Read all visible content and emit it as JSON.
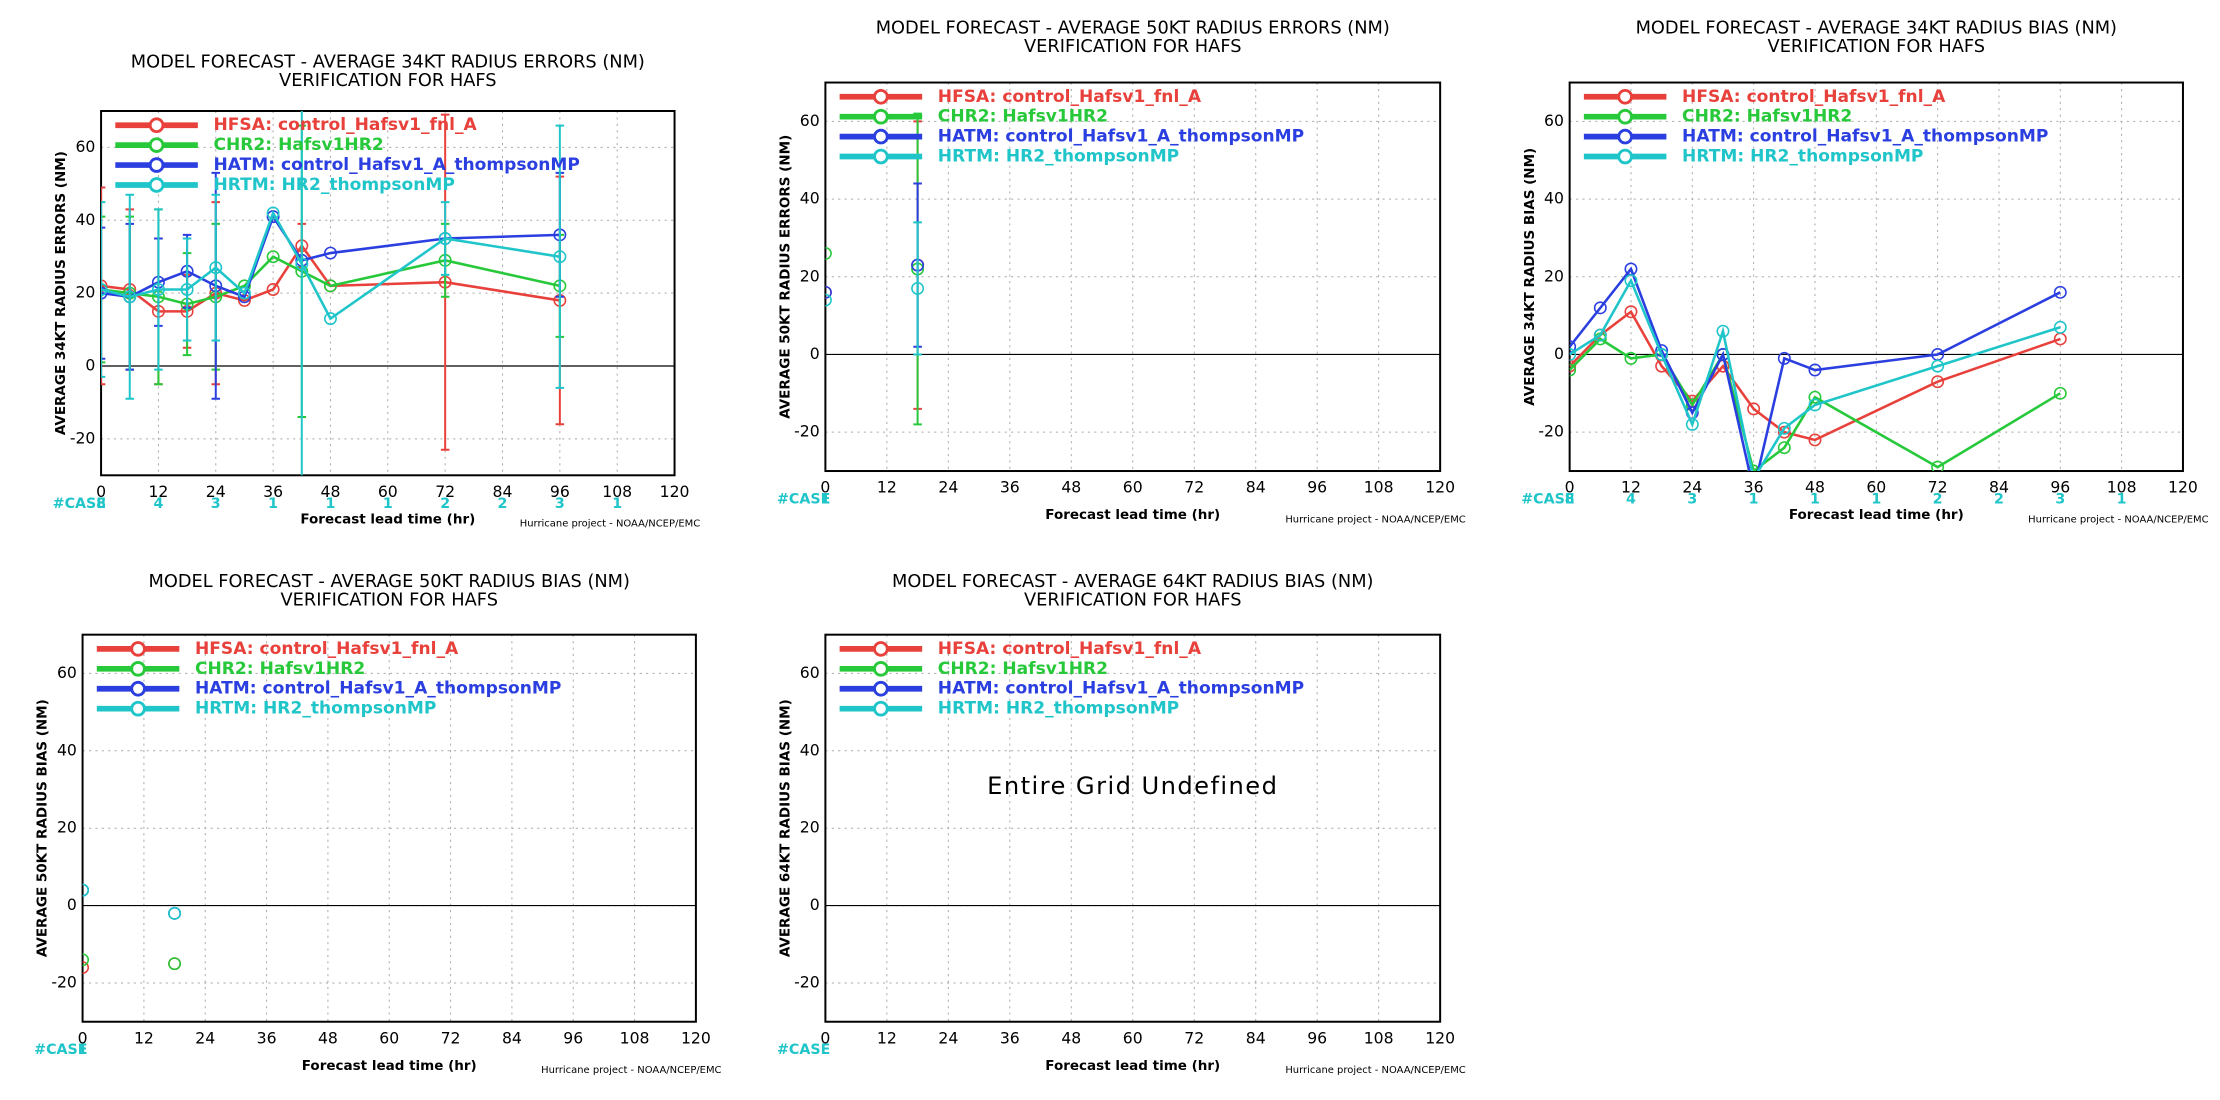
{
  "chart_data": [
    {
      "type": "line",
      "title": "MODEL FORECAST - AVERAGE 34KT RADIUS ERRORS (NM)",
      "subtitle": "VERIFICATION FOR HAFS",
      "ylabel": "AVERAGE 34KT RADIUS ERRORS (NM)",
      "xlabel": "Forecast lead time (hr)",
      "footer": "Hurricane project - NOAA/NCEP/EMC",
      "case_label": "#CASE",
      "cases": {
        "x": [
          0,
          12,
          24,
          36,
          48,
          60,
          72,
          84,
          96,
          108
        ],
        "values": [
          8,
          4,
          3,
          1,
          1,
          1,
          2,
          2,
          3,
          1
        ]
      },
      "x": [
        0,
        6,
        12,
        18,
        24,
        30,
        36,
        42,
        48,
        72,
        96
      ],
      "series": [
        {
          "name": "HFSA:  control_Hafsv1_fnl_A",
          "color": "#e8413c",
          "values": [
            22,
            21,
            15,
            15,
            20,
            18,
            21,
            33,
            22,
            23,
            18
          ],
          "errors": [
            27,
            22,
            20,
            10,
            25,
            null,
            null,
            6,
            null,
            46,
            34
          ]
        },
        {
          "name": "CHR2:  Hafsv1HR2",
          "color": "#27c93a",
          "values": [
            21,
            20,
            19,
            17,
            19,
            22,
            30,
            26,
            22,
            29,
            22
          ],
          "errors": [
            20,
            21,
            24,
            14,
            20,
            null,
            null,
            40,
            null,
            10,
            14
          ]
        },
        {
          "name": "HATM:  control_Hafsv1_A_thompsonMP",
          "color": "#2b3fe0",
          "values": [
            20,
            19,
            23,
            26,
            22,
            19,
            41,
            29,
            31,
            35,
            36
          ],
          "errors": [
            18,
            20,
            12,
            10,
            31,
            null,
            null,
            null,
            null,
            null,
            17
          ]
        },
        {
          "name": "HRTM:  HR2_thompsonMP",
          "color": "#1fc5c9",
          "values": [
            21,
            19,
            21,
            21,
            27,
            20,
            42,
            28,
            13,
            35,
            30
          ],
          "errors": [
            24,
            28,
            22,
            14,
            20,
            null,
            null,
            72,
            null,
            10,
            36
          ]
        }
      ],
      "xlim": [
        0,
        120
      ],
      "xticks": [
        0,
        12,
        24,
        36,
        48,
        60,
        72,
        84,
        96,
        108,
        120
      ],
      "ylim": [
        -30,
        70
      ],
      "yticks": [
        -20,
        0,
        20,
        40,
        60
      ],
      "grid": true
    },
    {
      "type": "line",
      "title": "MODEL FORECAST - AVERAGE 50KT RADIUS ERRORS (NM)",
      "subtitle": "VERIFICATION FOR HAFS",
      "ylabel": "AVERAGE 50KT RADIUS ERRORS (NM)",
      "xlabel": "Forecast lead time (hr)",
      "footer": "Hurricane project - NOAA/NCEP/EMC",
      "case_label": "#CASE",
      "cases": {
        "x": [
          0
        ],
        "values": [
          1
        ]
      },
      "x": [
        0,
        6,
        12,
        18
      ],
      "series": [
        {
          "name": "HFSA:  control_Hafsv1_fnl_A",
          "color": "#e8413c",
          "values": [
            16,
            null,
            null,
            23
          ],
          "errors": [
            null,
            null,
            null,
            37
          ]
        },
        {
          "name": "CHR2:  Hafsv1HR2",
          "color": "#27c93a",
          "values": [
            26,
            null,
            null,
            22
          ],
          "errors": [
            null,
            null,
            null,
            40
          ]
        },
        {
          "name": "HATM:  control_Hafsv1_A_thompsonMP",
          "color": "#2b3fe0",
          "values": [
            16,
            null,
            null,
            23
          ],
          "errors": [
            null,
            null,
            null,
            21
          ]
        },
        {
          "name": "HRTM:  HR2_thompsonMP",
          "color": "#1fc5c9",
          "values": [
            14,
            null,
            null,
            17
          ],
          "errors": [
            null,
            null,
            null,
            17
          ]
        }
      ],
      "xlim": [
        0,
        120
      ],
      "xticks": [
        0,
        12,
        24,
        36,
        48,
        60,
        72,
        84,
        96,
        108,
        120
      ],
      "ylim": [
        -30,
        70
      ],
      "yticks": [
        -20,
        0,
        20,
        40,
        60
      ],
      "grid": true
    },
    {
      "type": "line",
      "title": "MODEL FORECAST - AVERAGE 34KT RADIUS BIAS (NM)",
      "subtitle": "VERIFICATION FOR HAFS",
      "ylabel": "AVERAGE 34KT RADIUS BIAS (NM)",
      "xlabel": "Forecast lead time (hr)",
      "footer": "Hurricane project - NOAA/NCEP/EMC",
      "case_label": "#CASE",
      "cases": {
        "x": [
          0,
          12,
          24,
          36,
          48,
          60,
          72,
          84,
          96,
          108
        ],
        "values": [
          8,
          4,
          3,
          1,
          1,
          1,
          2,
          2,
          3,
          1
        ]
      },
      "x": [
        0,
        6,
        12,
        18,
        24,
        30,
        36,
        42,
        48,
        72,
        96
      ],
      "series": [
        {
          "name": "HFSA:  control_Hafsv1_fnl_A",
          "color": "#e8413c",
          "values": [
            -3,
            5,
            11,
            -3,
            -12,
            -3,
            -14,
            -20,
            -22,
            -7,
            4
          ]
        },
        {
          "name": "CHR2:  Hafsv1HR2",
          "color": "#27c93a",
          "values": [
            -4,
            4,
            -1,
            0,
            -13,
            0,
            -30,
            -24,
            -11,
            -29,
            -10
          ]
        },
        {
          "name": "HATM:  control_Hafsv1_A_thompsonMP",
          "color": "#2b3fe0",
          "values": [
            2,
            12,
            22,
            1,
            -15,
            0,
            -35,
            -1,
            -4,
            0,
            16
          ]
        },
        {
          "name": "HRTM:  HR2_thompsonMP",
          "color": "#1fc5c9",
          "values": [
            0,
            5,
            19,
            0,
            -18,
            6,
            -32,
            -19,
            -13,
            -3,
            7
          ]
        }
      ],
      "xlim": [
        0,
        120
      ],
      "xticks": [
        0,
        12,
        24,
        36,
        48,
        60,
        72,
        84,
        96,
        108,
        120
      ],
      "ylim": [
        -30,
        70
      ],
      "yticks": [
        -20,
        0,
        20,
        40,
        60
      ],
      "grid": true
    },
    {
      "type": "line",
      "title": "MODEL FORECAST - AVERAGE 50KT RADIUS BIAS (NM)",
      "subtitle": "VERIFICATION FOR HAFS",
      "ylabel": "AVERAGE 50KT RADIUS BIAS (NM)",
      "xlabel": "Forecast lead time (hr)",
      "footer": "Hurricane project - NOAA/NCEP/EMC",
      "case_label": "#CASE",
      "cases": {
        "x": [
          0
        ],
        "values": [
          1
        ]
      },
      "x": [
        0,
        6,
        12,
        18
      ],
      "series": [
        {
          "name": "HFSA:  control_Hafsv1_fnl_A",
          "color": "#e8413c",
          "values": [
            -16,
            null,
            null,
            -15
          ]
        },
        {
          "name": "CHR2:  Hafsv1HR2",
          "color": "#27c93a",
          "values": [
            -14,
            null,
            null,
            -15
          ]
        },
        {
          "name": "HATM:  control_Hafsv1_A_thompsonMP",
          "color": "#2b3fe0",
          "values": [
            4,
            null,
            null,
            -2
          ]
        },
        {
          "name": "HRTM:  HR2_thompsonMP",
          "color": "#1fc5c9",
          "values": [
            4,
            null,
            null,
            -2
          ]
        }
      ],
      "xlim": [
        0,
        120
      ],
      "xticks": [
        0,
        12,
        24,
        36,
        48,
        60,
        72,
        84,
        96,
        108,
        120
      ],
      "ylim": [
        -30,
        70
      ],
      "yticks": [
        -20,
        0,
        20,
        40,
        60
      ],
      "grid": true
    },
    {
      "type": "line",
      "title": "MODEL FORECAST - AVERAGE 64KT RADIUS BIAS (NM)",
      "subtitle": "VERIFICATION FOR HAFS",
      "ylabel": "AVERAGE 64KT RADIUS BIAS (NM)",
      "xlabel": "Forecast lead time (hr)",
      "footer": "Hurricane project - NOAA/NCEP/EMC",
      "case_label": "#CASE",
      "annotation": "Entire Grid Undefined",
      "series": [
        {
          "name": "HFSA:  control_Hafsv1_fnl_A",
          "color": "#e8413c"
        },
        {
          "name": "CHR2:  Hafsv1HR2",
          "color": "#27c93a"
        },
        {
          "name": "HATM:  control_Hafsv1_A_thompsonMP",
          "color": "#2b3fe0"
        },
        {
          "name": "HRTM:  HR2_thompsonMP",
          "color": "#1fc5c9"
        }
      ],
      "xlim": [
        0,
        120
      ],
      "xticks": [
        0,
        12,
        24,
        36,
        48,
        60,
        72,
        84,
        96,
        108,
        120
      ],
      "ylim": [
        -30,
        70
      ],
      "yticks": [
        -20,
        0,
        20,
        40,
        60
      ],
      "grid": true
    }
  ]
}
